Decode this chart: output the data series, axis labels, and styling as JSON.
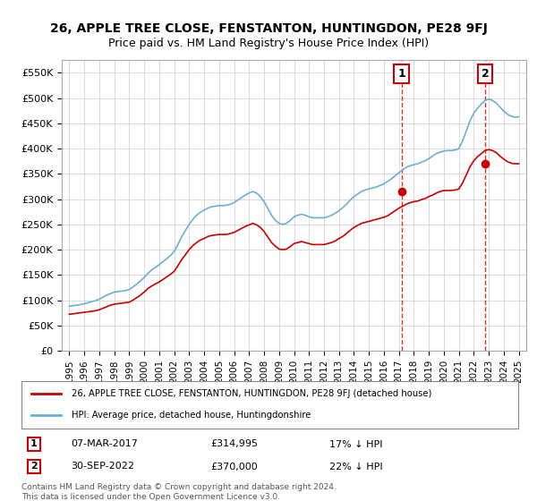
{
  "title": "26, APPLE TREE CLOSE, FENSTANTON, HUNTINGDON, PE28 9FJ",
  "subtitle": "Price paid vs. HM Land Registry's House Price Index (HPI)",
  "ylabel": "",
  "ylim": [
    0,
    575000
  ],
  "yticks": [
    0,
    50000,
    100000,
    150000,
    200000,
    250000,
    300000,
    350000,
    400000,
    450000,
    500000,
    550000
  ],
  "ytick_labels": [
    "£0",
    "£50K",
    "£100K",
    "£150K",
    "£200K",
    "£250K",
    "£300K",
    "£350K",
    "£400K",
    "£450K",
    "£500K",
    "£550K"
  ],
  "xlim_start": 1994.5,
  "xlim_end": 2025.5,
  "hpi_color": "#6baed6",
  "price_color": "#cc0000",
  "transaction1": {
    "year": 2017.17,
    "price": 314995,
    "label": "1",
    "date": "07-MAR-2017",
    "pct": "17% ↓ HPI"
  },
  "transaction2": {
    "year": 2022.75,
    "price": 370000,
    "label": "2",
    "date": "30-SEP-2022",
    "pct": "22% ↓ HPI"
  },
  "legend_line1": "26, APPLE TREE CLOSE, FENSTANTON, HUNTINGDON, PE28 9FJ (detached house)",
  "legend_line2": "HPI: Average price, detached house, Huntingdonshire",
  "footer": "Contains HM Land Registry data © Crown copyright and database right 2024.\nThis data is licensed under the Open Government Licence v3.0.",
  "background_color": "#ffffff",
  "grid_color": "#cccccc",
  "hpi_years": [
    1995,
    1995.25,
    1995.5,
    1995.75,
    1996,
    1996.25,
    1996.5,
    1996.75,
    1997,
    1997.25,
    1997.5,
    1997.75,
    1998,
    1998.25,
    1998.5,
    1998.75,
    1999,
    1999.25,
    1999.5,
    1999.75,
    2000,
    2000.25,
    2000.5,
    2000.75,
    2001,
    2001.25,
    2001.5,
    2001.75,
    2002,
    2002.25,
    2002.5,
    2002.75,
    2003,
    2003.25,
    2003.5,
    2003.75,
    2004,
    2004.25,
    2004.5,
    2004.75,
    2005,
    2005.25,
    2005.5,
    2005.75,
    2006,
    2006.25,
    2006.5,
    2006.75,
    2007,
    2007.25,
    2007.5,
    2007.75,
    2008,
    2008.25,
    2008.5,
    2008.75,
    2009,
    2009.25,
    2009.5,
    2009.75,
    2010,
    2010.25,
    2010.5,
    2010.75,
    2011,
    2011.25,
    2011.5,
    2011.75,
    2012,
    2012.25,
    2012.5,
    2012.75,
    2013,
    2013.25,
    2013.5,
    2013.75,
    2014,
    2014.25,
    2014.5,
    2014.75,
    2015,
    2015.25,
    2015.5,
    2015.75,
    2016,
    2016.25,
    2016.5,
    2016.75,
    2017,
    2017.25,
    2017.5,
    2017.75,
    2018,
    2018.25,
    2018.5,
    2018.75,
    2019,
    2019.25,
    2019.5,
    2019.75,
    2020,
    2020.25,
    2020.5,
    2020.75,
    2021,
    2021.25,
    2021.5,
    2021.75,
    2022,
    2022.25,
    2022.5,
    2022.75,
    2023,
    2023.25,
    2023.5,
    2023.75,
    2024,
    2024.25,
    2024.5,
    2024.75,
    2025
  ],
  "hpi_values": [
    88000,
    89000,
    90000,
    91500,
    93000,
    95000,
    97000,
    99000,
    102000,
    106000,
    110000,
    113000,
    116000,
    117000,
    118000,
    119000,
    121000,
    126000,
    132000,
    138000,
    145000,
    153000,
    160000,
    165000,
    170000,
    176000,
    182000,
    188000,
    196000,
    210000,
    225000,
    238000,
    250000,
    260000,
    268000,
    274000,
    278000,
    282000,
    285000,
    286000,
    287000,
    287000,
    288000,
    290000,
    293000,
    298000,
    303000,
    308000,
    312000,
    315000,
    312000,
    305000,
    295000,
    282000,
    268000,
    258000,
    252000,
    250000,
    252000,
    258000,
    265000,
    268000,
    270000,
    268000,
    265000,
    263000,
    263000,
    263000,
    263000,
    265000,
    268000,
    272000,
    277000,
    283000,
    290000,
    298000,
    305000,
    310000,
    315000,
    318000,
    320000,
    322000,
    324000,
    327000,
    330000,
    335000,
    340000,
    346000,
    352000,
    358000,
    363000,
    366000,
    368000,
    370000,
    373000,
    376000,
    380000,
    385000,
    390000,
    393000,
    395000,
    396000,
    396000,
    397000,
    400000,
    415000,
    435000,
    455000,
    470000,
    480000,
    488000,
    495000,
    498000,
    495000,
    490000,
    482000,
    474000,
    468000,
    464000,
    462000,
    463000
  ],
  "price_years": [
    1995,
    1995.25,
    1995.5,
    1995.75,
    1996,
    1996.25,
    1996.5,
    1996.75,
    1997,
    1997.25,
    1997.5,
    1997.75,
    1998,
    1998.25,
    1998.5,
    1998.75,
    1999,
    1999.25,
    1999.5,
    1999.75,
    2000,
    2000.25,
    2000.5,
    2000.75,
    2001,
    2001.25,
    2001.5,
    2001.75,
    2002,
    2002.25,
    2002.5,
    2002.75,
    2003,
    2003.25,
    2003.5,
    2003.75,
    2004,
    2004.25,
    2004.5,
    2004.75,
    2005,
    2005.25,
    2005.5,
    2005.75,
    2006,
    2006.25,
    2006.5,
    2006.75,
    2007,
    2007.25,
    2007.5,
    2007.75,
    2008,
    2008.25,
    2008.5,
    2008.75,
    2009,
    2009.25,
    2009.5,
    2009.75,
    2010,
    2010.25,
    2010.5,
    2010.75,
    2011,
    2011.25,
    2011.5,
    2011.75,
    2012,
    2012.25,
    2012.5,
    2012.75,
    2013,
    2013.25,
    2013.5,
    2013.75,
    2014,
    2014.25,
    2014.5,
    2014.75,
    2015,
    2015.25,
    2015.5,
    2015.75,
    2016,
    2016.25,
    2016.5,
    2016.75,
    2017,
    2017.25,
    2017.5,
    2017.75,
    2018,
    2018.25,
    2018.5,
    2018.75,
    2019,
    2019.25,
    2019.5,
    2019.75,
    2020,
    2020.25,
    2020.5,
    2020.75,
    2021,
    2021.25,
    2021.5,
    2021.75,
    2022,
    2022.25,
    2022.5,
    2022.75,
    2023,
    2023.25,
    2023.5,
    2023.75,
    2024,
    2024.25,
    2024.5,
    2024.75,
    2025
  ],
  "price_values": [
    72000,
    73000,
    74000,
    75000,
    76000,
    77000,
    78000,
    79000,
    81000,
    84000,
    87000,
    90000,
    92000,
    93000,
    94000,
    95000,
    96000,
    100000,
    105000,
    110000,
    116000,
    123000,
    128000,
    132000,
    136000,
    141000,
    146000,
    151000,
    157000,
    168000,
    180000,
    190000,
    200000,
    208000,
    214000,
    219000,
    222000,
    226000,
    228000,
    229000,
    230000,
    230000,
    230000,
    232000,
    234000,
    238000,
    242000,
    246000,
    249000,
    252000,
    249000,
    244000,
    236000,
    225000,
    214000,
    207000,
    201000,
    200000,
    201000,
    206000,
    212000,
    214000,
    216000,
    214000,
    212000,
    210000,
    210000,
    210000,
    210000,
    212000,
    214000,
    217000,
    222000,
    226000,
    232000,
    238000,
    244000,
    248000,
    252000,
    254000,
    256000,
    258000,
    260000,
    262000,
    264000,
    267000,
    272000,
    277000,
    282000,
    286000,
    290000,
    293000,
    295000,
    296000,
    299000,
    301000,
    305000,
    308000,
    312000,
    315000,
    317000,
    317000,
    317000,
    318000,
    320000,
    332000,
    348000,
    364000,
    376000,
    384000,
    390000,
    396000,
    398000,
    396000,
    392000,
    385000,
    379000,
    374000,
    371000,
    370000,
    370000
  ]
}
